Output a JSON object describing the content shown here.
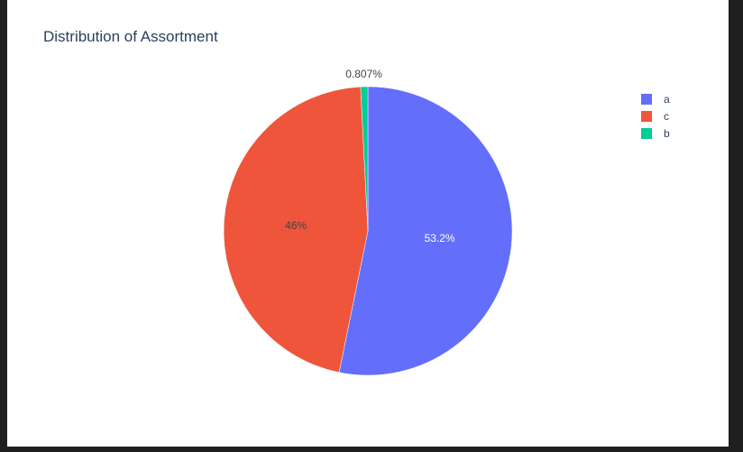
{
  "chart_data": {
    "type": "pie",
    "title": "Distribution of Assortment",
    "legend_position": "top-right",
    "slices": [
      {
        "label": "a",
        "value": 53.2,
        "text": "53.2%",
        "color": "#636efa",
        "text_color": "#ffffff"
      },
      {
        "label": "c",
        "value": 46.0,
        "text": "46%",
        "color": "#ef553b",
        "text_color": "#444444"
      },
      {
        "label": "b",
        "value": 0.807,
        "text": "0.807%",
        "color": "#00cc96",
        "text_color": "#444444"
      }
    ],
    "legend": [
      {
        "label": "a",
        "color": "#636efa"
      },
      {
        "label": "c",
        "color": "#ef553b"
      },
      {
        "label": "b",
        "color": "#00cc96"
      }
    ]
  }
}
